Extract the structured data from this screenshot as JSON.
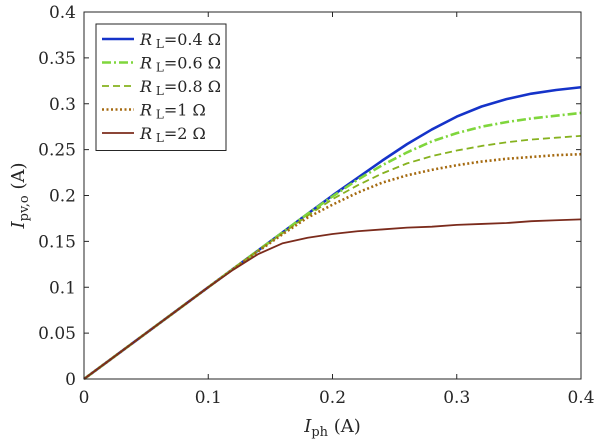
{
  "chart_data": {
    "type": "line",
    "xlabel": {
      "main": "I",
      "sub": "ph",
      "unit": " (A)"
    },
    "ylabel": {
      "main": "I",
      "sub": "pv,o",
      "unit": " (A)"
    },
    "xlim": [
      0,
      0.4
    ],
    "ylim": [
      0,
      0.4
    ],
    "xticks": [
      0,
      0.1,
      0.2,
      0.3,
      0.4
    ],
    "xtick_labels": [
      "0",
      "0.1",
      "0.2",
      "0.3",
      "0.4"
    ],
    "yticks": [
      0,
      0.05,
      0.1,
      0.15,
      0.2,
      0.25,
      0.3,
      0.35,
      0.4
    ],
    "ytick_labels": [
      "0",
      "0.05",
      "0.1",
      "0.15",
      "0.2",
      "0.25",
      "0.3",
      "0.35",
      "0.4"
    ],
    "grid": false,
    "legend_position": "top-left",
    "x": [
      0,
      0.02,
      0.04,
      0.06,
      0.08,
      0.1,
      0.12,
      0.14,
      0.16,
      0.18,
      0.2,
      0.22,
      0.24,
      0.26,
      0.28,
      0.3,
      0.32,
      0.34,
      0.36,
      0.38,
      0.4
    ],
    "series": [
      {
        "name": {
          "main": "R",
          "sub": "L",
          "rest": "=0.4 Ω"
        },
        "color": "#1533c9",
        "dash": "solid",
        "width": 2.6,
        "values": [
          0,
          0.02,
          0.04,
          0.06,
          0.08,
          0.1,
          0.12,
          0.14,
          0.16,
          0.18,
          0.2,
          0.219,
          0.238,
          0.256,
          0.272,
          0.286,
          0.297,
          0.305,
          0.311,
          0.315,
          0.318
        ]
      },
      {
        "name": {
          "main": "R",
          "sub": "L",
          "rest": "=0.6 Ω"
        },
        "color": "#7fd63c",
        "dash": "dashdot",
        "width": 2.6,
        "values": [
          0,
          0.02,
          0.04,
          0.06,
          0.08,
          0.1,
          0.12,
          0.14,
          0.16,
          0.18,
          0.199,
          0.217,
          0.233,
          0.247,
          0.259,
          0.268,
          0.275,
          0.28,
          0.284,
          0.287,
          0.29
        ]
      },
      {
        "name": {
          "main": "R",
          "sub": "L",
          "rest": "=0.8 Ω"
        },
        "color": "#86b21f",
        "dash": "dashed",
        "width": 1.8,
        "values": [
          0,
          0.02,
          0.04,
          0.06,
          0.08,
          0.1,
          0.12,
          0.14,
          0.159,
          0.178,
          0.196,
          0.211,
          0.224,
          0.235,
          0.243,
          0.249,
          0.254,
          0.258,
          0.261,
          0.263,
          0.265
        ]
      },
      {
        "name": {
          "main": "R",
          "sub": "L",
          "rest": "=1 Ω"
        },
        "color": "#a56a10",
        "dash": "dotted",
        "width": 2.6,
        "values": [
          0,
          0.02,
          0.04,
          0.06,
          0.08,
          0.1,
          0.12,
          0.139,
          0.158,
          0.176,
          0.19,
          0.203,
          0.214,
          0.222,
          0.228,
          0.233,
          0.237,
          0.24,
          0.242,
          0.244,
          0.245
        ]
      },
      {
        "name": {
          "main": "R",
          "sub": "L",
          "rest": "=2 Ω"
        },
        "color": "#7b2b1c",
        "dash": "solid",
        "width": 1.8,
        "values": [
          0,
          0.02,
          0.04,
          0.06,
          0.08,
          0.1,
          0.119,
          0.136,
          0.148,
          0.154,
          0.158,
          0.161,
          0.163,
          0.165,
          0.166,
          0.168,
          0.169,
          0.17,
          0.172,
          0.173,
          0.174
        ]
      }
    ]
  }
}
